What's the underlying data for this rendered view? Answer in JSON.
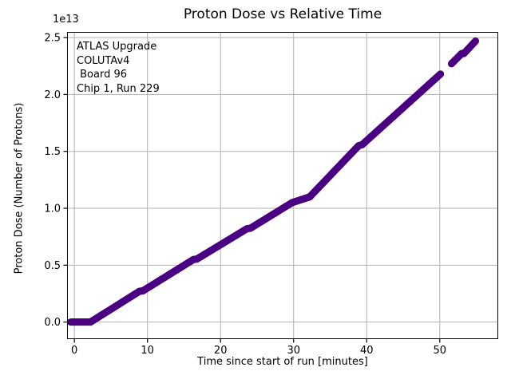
{
  "chart_data": {
    "type": "scatter",
    "title": "Proton Dose vs Relative Time",
    "xlabel": "Time since start of run [minutes]",
    "ylabel": "Proton Dose (Number of Protons)",
    "y_offset_text": "1e13",
    "annotation_lines": [
      "ATLAS Upgrade",
      "COLUTAv4",
      " Board 96",
      "Chip 1, Run 229"
    ],
    "xlim": [
      -1.0,
      58.0
    ],
    "ylim": [
      -0.15,
      2.55
    ],
    "xticks": [
      0,
      10,
      20,
      30,
      40,
      50
    ],
    "xtick_labels": [
      "0",
      "10",
      "20",
      "30",
      "40",
      "50"
    ],
    "yticks": [
      0.0,
      0.5,
      1.0,
      1.5,
      2.0,
      2.5
    ],
    "ytick_labels": [
      "0.0",
      "0.5",
      "1.0",
      "1.5",
      "2.0",
      "2.5"
    ],
    "y_scale_factor": "1e13",
    "grid": true,
    "legend": "none",
    "marker_color": "#4B0082",
    "grid_color": "#b0b0b0",
    "spine_color": "#000000",
    "marker_radius_px": 4.5,
    "sample_step_minutes": 0.07,
    "series_segments": [
      {
        "x0": -0.5,
        "y0": 0.0,
        "x1": 2.2,
        "y1": 0.0
      },
      {
        "x0": 2.2,
        "y0": 0.0,
        "x1": 8.9,
        "y1": 0.27
      },
      {
        "x0": 8.9,
        "y0": 0.27,
        "x1": 9.4,
        "y1": 0.275
      },
      {
        "x0": 9.4,
        "y0": 0.275,
        "x1": 16.3,
        "y1": 0.55
      },
      {
        "x0": 16.3,
        "y0": 0.55,
        "x1": 16.8,
        "y1": 0.555
      },
      {
        "x0": 16.8,
        "y0": 0.555,
        "x1": 23.6,
        "y1": 0.82
      },
      {
        "x0": 23.6,
        "y0": 0.82,
        "x1": 24.1,
        "y1": 0.825
      },
      {
        "x0": 24.1,
        "y0": 0.825,
        "x1": 29.8,
        "y1": 1.05
      },
      {
        "x0": 29.8,
        "y0": 1.05,
        "x1": 32.2,
        "y1": 1.1
      },
      {
        "x0": 32.2,
        "y0": 1.1,
        "x1": 38.9,
        "y1": 1.55
      },
      {
        "x0": 38.9,
        "y0": 1.55,
        "x1": 39.4,
        "y1": 1.56
      },
      {
        "x0": 39.4,
        "y0": 1.56,
        "x1": 50.1,
        "y1": 2.18
      },
      {
        "x0": 51.6,
        "y0": 2.27,
        "x1": 53.0,
        "y1": 2.36
      },
      {
        "x0": 53.0,
        "y0": 2.36,
        "x1": 53.3,
        "y1": 2.36
      },
      {
        "x0": 53.3,
        "y0": 2.36,
        "x1": 54.9,
        "y1": 2.47
      }
    ]
  }
}
